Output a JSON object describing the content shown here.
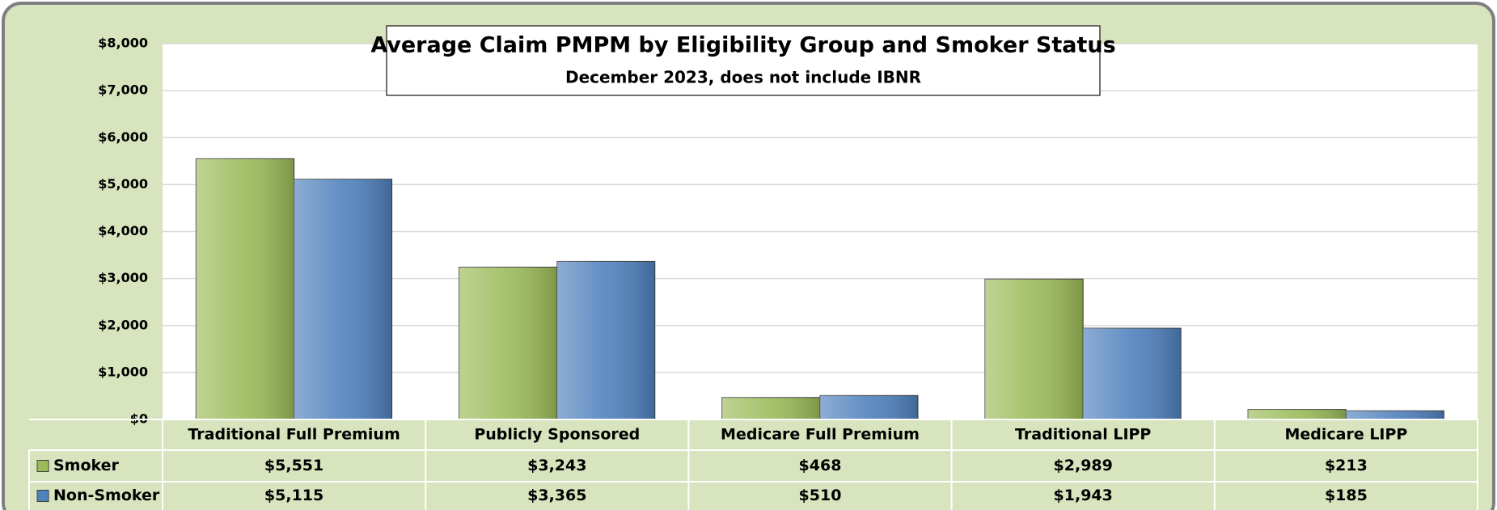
{
  "chart_data": {
    "type": "bar",
    "title": "Average Claim PMPM by Eligibility Group and Smoker Status",
    "subtitle": "December 2023, does not include IBNR",
    "categories": [
      "Traditional Full Premium",
      "Publicly Sponsored",
      "Medicare Full Premium",
      "Traditional LIPP",
      "Medicare LIPP"
    ],
    "series": [
      {
        "name": "Smoker",
        "color": "#9bbb59",
        "values": [
          5551,
          3243,
          468,
          2989,
          213
        ],
        "value_labels": [
          "$5,551",
          "$3,243",
          "$468",
          "$2,989",
          "$213"
        ]
      },
      {
        "name": "Non-Smoker",
        "color": "#4f81bd",
        "values": [
          5115,
          3365,
          510,
          1943,
          185
        ],
        "value_labels": [
          "$5,115",
          "$3,365",
          "$510",
          "$1,943",
          "$185"
        ]
      }
    ],
    "ylim": [
      0,
      8000
    ],
    "yticks": [
      {
        "value": 0,
        "label": "$0"
      },
      {
        "value": 1000,
        "label": "$1,000"
      },
      {
        "value": 2000,
        "label": "$2,000"
      },
      {
        "value": 3000,
        "label": "$3,000"
      },
      {
        "value": 4000,
        "label": "$4,000"
      },
      {
        "value": 5000,
        "label": "$5,000"
      },
      {
        "value": 6000,
        "label": "$6,000"
      },
      {
        "value": 7000,
        "label": "$7,000"
      },
      {
        "value": 8000,
        "label": "$8,000"
      }
    ],
    "grid": true
  }
}
